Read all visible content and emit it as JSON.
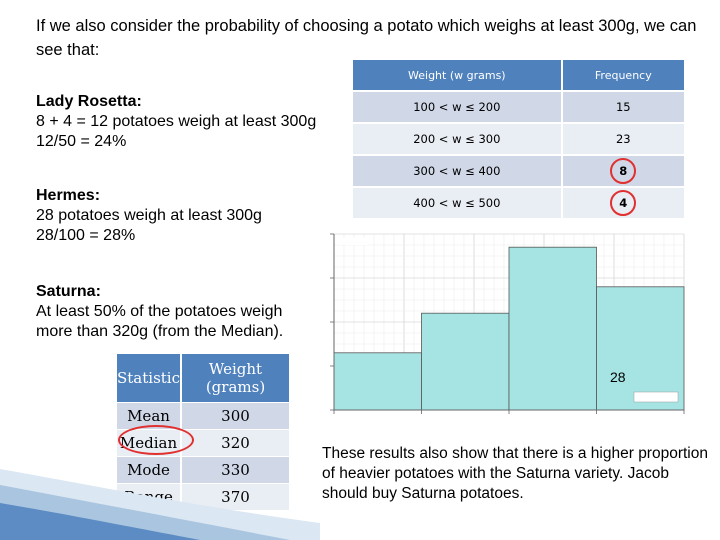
{
  "intro": "If we also consider the probability of choosing a potato which weighs at least 300g, we can see that:",
  "lady": {
    "title": "Lady Rosetta:",
    "line1": "8 + 4 = 12 potatoes weigh at least 300g",
    "line2": "12/50 = 24%"
  },
  "hermes": {
    "title": "Hermes:",
    "line1": "28 potatoes weigh at least 300g",
    "line2": "28/100 = 28%"
  },
  "saturna": {
    "title": "Saturna:",
    "line1": "At least 50% of the potatoes weigh",
    "line2": "more than 320g (from the Median)."
  },
  "freq_table": {
    "headers": [
      "Weight (w grams)",
      "Frequency"
    ],
    "rows": [
      {
        "weight": "100 < w ≤ 200",
        "freq": "15"
      },
      {
        "weight": "200 < w ≤ 300",
        "freq": "23"
      },
      {
        "weight": "300 < w ≤ 400",
        "freq": "8"
      },
      {
        "weight": "400 < w ≤ 500",
        "freq": "4"
      }
    ],
    "highlight_color": "#e03030"
  },
  "stats_table": {
    "headers": [
      "Statistic",
      "Weight (grams)"
    ],
    "rows": [
      {
        "stat": "Mean",
        "value": "300"
      },
      {
        "stat": "Median",
        "value": "320"
      },
      {
        "stat": "Mode",
        "value": "330"
      },
      {
        "stat": "Range",
        "value": "370"
      }
    ]
  },
  "histogram_label": "28",
  "conclusion": "These results also show that there is a higher proportion of heavier potatoes with the Saturna variety. Jacob should buy Saturna potatoes.",
  "colors": {
    "header_blue": "#4f81bd",
    "row_dark": "#d0d8e8",
    "row_light": "#e9edf4",
    "bar_fill": "#a6e4e4",
    "accent_red": "#e03030"
  },
  "chart_data": {
    "type": "bar",
    "categories": [
      "100-200",
      "200-300",
      "300-400",
      "400-500"
    ],
    "values": [
      0.13,
      0.22,
      0.37,
      0.28
    ],
    "ylim": [
      0,
      0.4
    ]
  }
}
